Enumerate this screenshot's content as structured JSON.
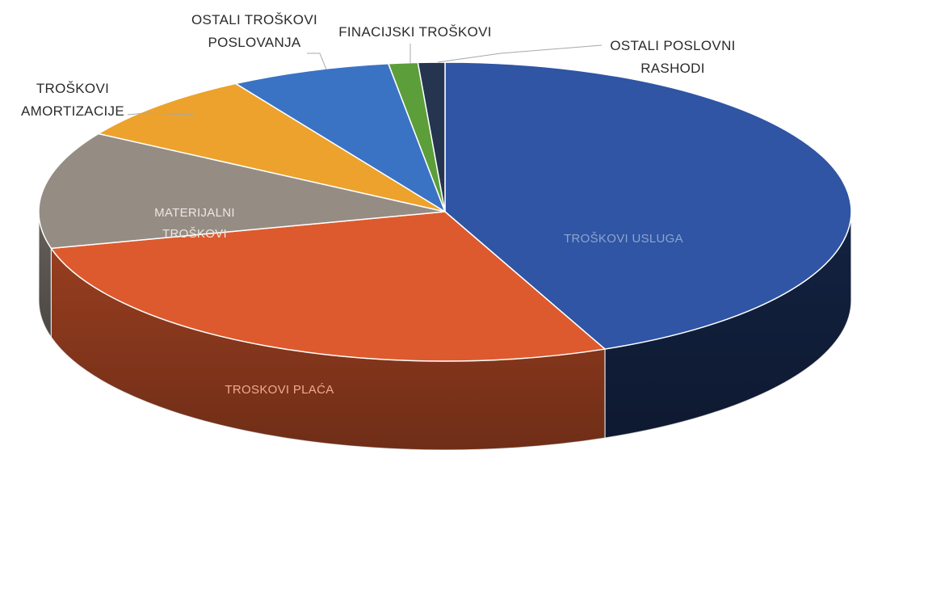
{
  "chart_data": {
    "type": "pie",
    "title": "",
    "series": [
      {
        "name": "",
        "values": [
          45.0,
          28.4,
          13.1,
          7.9,
          6.6,
          1.2,
          1.1
        ]
      }
    ],
    "categories": [
      "TROŠKOVI USLUGA",
      "TROŠKOVI PLAĆA",
      "MATERIJALNI TROŠKOVI",
      "TROŠKOVI AMORTIZACIJE",
      "OSTALI TROŠKOVI POSLOVANJA",
      "FINACIJSKI TROŠKOVI",
      "OSTALI POSLOVNI RASHODI"
    ],
    "labels": {
      "usluga": "TROŠKOVI USLUGA",
      "placa": "TROSKOVI PLAĆA",
      "materijalni_1": "MATERIJALNI",
      "materijalni_2": "TROŠKOVI",
      "amortizacija_1": "TROŠKOVI",
      "amortizacija_2": "AMORTIZACIJE",
      "ostali_troskovi_1": "OSTALI TROŠKOVI",
      "ostali_troskovi_2": "POSLOVANJA",
      "financijski": "FINACIJSKI TROŠKOVI",
      "ostali_rashodi_1": "OSTALI POSLOVNI",
      "ostali_rashodi_2": "RASHODI"
    },
    "colors": [
      "#2f55a4",
      "#dd5a2e",
      "#958c84",
      "#eca22c",
      "#3a73c4",
      "#5c9e3a",
      "#253550"
    ],
    "three_d": true,
    "legend": "none"
  }
}
